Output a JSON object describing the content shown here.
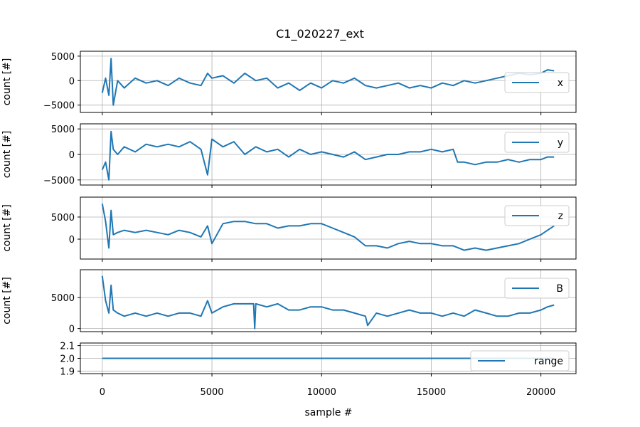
{
  "chart_data": {
    "type": "line",
    "title": "C1_020227_ext",
    "xlabel": "sample #",
    "color": "#1f77b4",
    "grid": true,
    "xlim": [
      -1000,
      21600
    ],
    "xticks": [
      0,
      5000,
      10000,
      15000,
      20000
    ],
    "xtick_labels": [
      "0",
      "5000",
      "10000",
      "15000",
      "20000"
    ],
    "panels": [
      {
        "name": "x",
        "ylabel": "count [#]",
        "legend": "x",
        "legend_loc": "center-right",
        "ylim": [
          -6500,
          6000
        ],
        "yticks": [
          -5000,
          0,
          5000
        ],
        "ytick_labels": [
          "−5000",
          "0",
          "5000"
        ],
        "x": [
          0,
          150,
          300,
          400,
          500,
          700,
          1000,
          1500,
          2000,
          2500,
          3000,
          3500,
          4000,
          4500,
          4800,
          5000,
          5500,
          6000,
          6500,
          7000,
          7500,
          8000,
          8500,
          9000,
          9500,
          10000,
          10500,
          11000,
          11500,
          12000,
          12500,
          13000,
          13500,
          14000,
          14500,
          15000,
          15500,
          16000,
          16500,
          17000,
          17500,
          18000,
          18500,
          19000,
          19500,
          20000,
          20300,
          20600
        ],
        "y": [
          -2500,
          500,
          -3000,
          4500,
          -5000,
          0,
          -1500,
          500,
          -500,
          0,
          -1000,
          500,
          -500,
          -1000,
          1500,
          500,
          1000,
          -500,
          1500,
          0,
          500,
          -1500,
          -500,
          -2000,
          -500,
          -1500,
          0,
          -500,
          500,
          -1000,
          -1500,
          -1000,
          -500,
          -1500,
          -1000,
          -1500,
          -500,
          -1000,
          0,
          -500,
          0,
          500,
          1000,
          1500,
          1200,
          1500,
          2200,
          2000
        ]
      },
      {
        "name": "y",
        "ylabel": "count [#]",
        "legend": "y",
        "legend_loc": "upper-right",
        "ylim": [
          -6000,
          6000
        ],
        "yticks": [
          -5000,
          0,
          5000
        ],
        "ytick_labels": [
          "−5000",
          "0",
          "5000"
        ],
        "x": [
          0,
          150,
          300,
          400,
          500,
          700,
          1000,
          1500,
          2000,
          2500,
          3000,
          3500,
          4000,
          4500,
          4800,
          5000,
          5500,
          6000,
          6500,
          7000,
          7500,
          8000,
          8500,
          9000,
          9500,
          10000,
          10500,
          11000,
          11500,
          12000,
          12500,
          13000,
          13500,
          14000,
          14500,
          15000,
          15500,
          16000,
          16200,
          16500,
          17000,
          17500,
          18000,
          18500,
          19000,
          19500,
          20000,
          20300,
          20600
        ],
        "y": [
          -3000,
          -1500,
          -5000,
          4500,
          1000,
          0,
          1500,
          500,
          2000,
          1500,
          2000,
          1500,
          2500,
          1000,
          -4000,
          3000,
          1500,
          2500,
          0,
          1500,
          500,
          1000,
          -500,
          1000,
          0,
          500,
          0,
          -500,
          500,
          -1000,
          -500,
          0,
          0,
          500,
          500,
          1000,
          500,
          1000,
          -1500,
          -1500,
          -2000,
          -1500,
          -1500,
          -1000,
          -1500,
          -1000,
          -1000,
          -500,
          -500
        ]
      },
      {
        "name": "z",
        "ylabel": "count [#]",
        "legend": "z",
        "legend_loc": "upper-right",
        "ylim": [
          -4500,
          9500
        ],
        "yticks": [
          0,
          5000
        ],
        "ytick_labels": [
          "0",
          "5000"
        ],
        "x": [
          0,
          150,
          300,
          400,
          500,
          700,
          1000,
          1500,
          2000,
          2500,
          3000,
          3500,
          4000,
          4500,
          4800,
          5000,
          5500,
          6000,
          6500,
          7000,
          7500,
          8000,
          8500,
          9000,
          9500,
          10000,
          10500,
          11000,
          11500,
          12000,
          12500,
          13000,
          13500,
          14000,
          14500,
          15000,
          15500,
          16000,
          16500,
          17000,
          17500,
          18000,
          18500,
          19000,
          19500,
          20000,
          20300,
          20600
        ],
        "y": [
          8000,
          4000,
          -2000,
          6500,
          1000,
          1500,
          2000,
          1500,
          2000,
          1500,
          1000,
          2000,
          1500,
          500,
          3000,
          -1000,
          3500,
          4000,
          4000,
          3500,
          3500,
          2500,
          3000,
          3000,
          3500,
          3500,
          2500,
          1500,
          500,
          -1500,
          -1500,
          -2000,
          -1000,
          -500,
          -1000,
          -1000,
          -1500,
          -1500,
          -2500,
          -2000,
          -2500,
          -2000,
          -1500,
          -1000,
          0,
          1000,
          2000,
          3000
        ]
      },
      {
        "name": "B",
        "ylabel": "count [#]",
        "legend": "B",
        "legend_loc": "upper-right",
        "ylim": [
          -500,
          9500
        ],
        "yticks": [
          0,
          5000
        ],
        "ytick_labels": [
          "0",
          "5000"
        ],
        "x": [
          0,
          150,
          300,
          400,
          500,
          700,
          1000,
          1500,
          2000,
          2500,
          3000,
          3500,
          4000,
          4500,
          4800,
          5000,
          5500,
          6000,
          6500,
          6900,
          6950,
          7000,
          7500,
          8000,
          8500,
          9000,
          9500,
          10000,
          10500,
          11000,
          11500,
          12000,
          12100,
          12500,
          13000,
          13500,
          14000,
          14500,
          15000,
          15500,
          16000,
          16500,
          17000,
          17500,
          18000,
          18500,
          19000,
          19500,
          20000,
          20300,
          20600
        ],
        "y": [
          8500,
          4500,
          2500,
          7000,
          3000,
          2500,
          2000,
          2500,
          2000,
          2500,
          2000,
          2500,
          2500,
          2000,
          4500,
          2500,
          3500,
          4000,
          4000,
          4000,
          0,
          4000,
          3500,
          4000,
          3000,
          3000,
          3500,
          3500,
          3000,
          3000,
          2500,
          2000,
          500,
          2500,
          2000,
          2500,
          3000,
          2500,
          2500,
          2000,
          2500,
          2000,
          3000,
          2500,
          2000,
          2000,
          2500,
          2500,
          3000,
          3500,
          3800
        ]
      },
      {
        "name": "range",
        "ylabel": "",
        "legend": "range",
        "legend_loc": "lower-right",
        "ylim": [
          1.88,
          2.12
        ],
        "yticks": [
          1.9,
          2.0,
          2.1
        ],
        "ytick_labels": [
          "1.9",
          "2.0",
          "2.1"
        ],
        "x": [
          0,
          20600
        ],
        "y": [
          2.0,
          2.0
        ]
      }
    ]
  }
}
